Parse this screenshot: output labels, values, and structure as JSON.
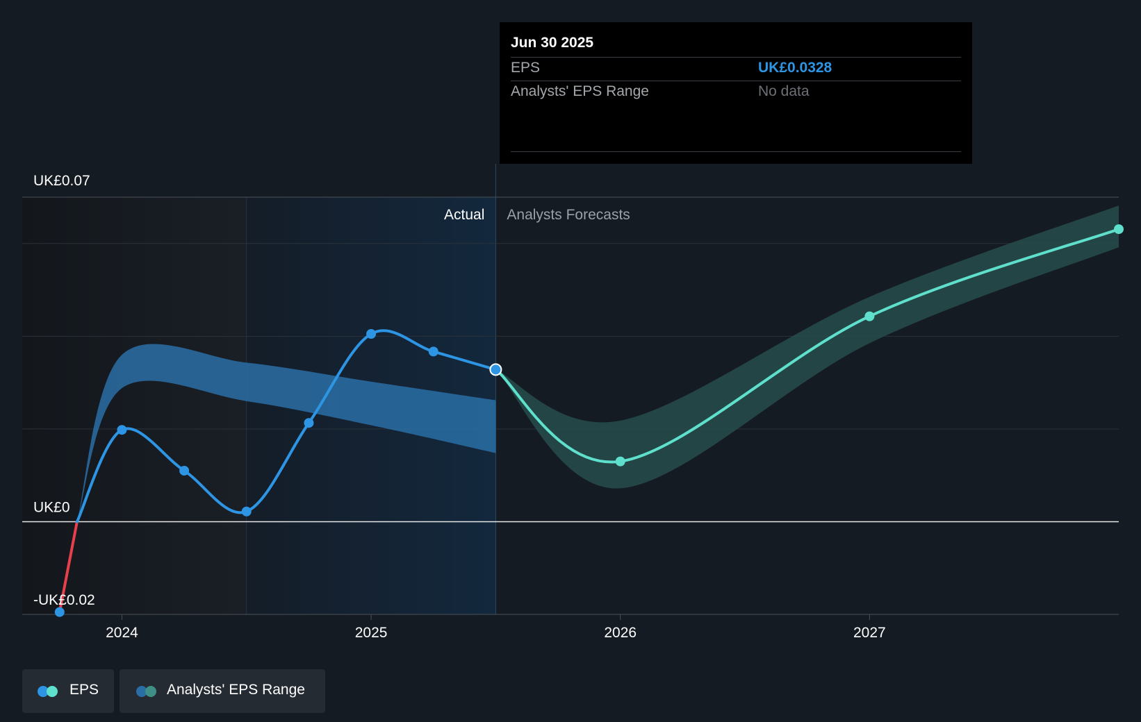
{
  "chart_data": {
    "type": "line",
    "y_axis": {
      "ticks": [
        {
          "value": 0.07,
          "label": "UK£0.07"
        },
        {
          "value": 0,
          "label": "UK£0"
        },
        {
          "value": -0.02,
          "label": "-UK£0.02"
        }
      ],
      "ylim": [
        -0.02,
        0.07
      ],
      "gridlines": [
        0.06,
        0.04,
        0.02
      ]
    },
    "x_axis": {
      "ticks": [
        "2024",
        "2025",
        "2026",
        "2027"
      ],
      "xlim": [
        2023.6,
        2028.0
      ]
    },
    "sections": {
      "actual_label": "Actual",
      "forecast_label": "Analysts Forecasts",
      "divider_x": 2025.5
    },
    "series": [
      {
        "name": "EPS",
        "color": "#2d95e3",
        "negative_color": "#e5404b",
        "points": [
          {
            "x": 2023.75,
            "y": -0.0195
          },
          {
            "x": 2024.0,
            "y": 0.0198
          },
          {
            "x": 2024.25,
            "y": 0.011
          },
          {
            "x": 2024.5,
            "y": 0.0022
          },
          {
            "x": 2024.75,
            "y": 0.0213
          },
          {
            "x": 2025.0,
            "y": 0.0405
          },
          {
            "x": 2025.25,
            "y": 0.0367
          },
          {
            "x": 2025.5,
            "y": 0.0328
          }
        ]
      },
      {
        "name": "EPS forecast",
        "color": "#5ee0cc",
        "points": [
          {
            "x": 2025.5,
            "y": 0.0328
          },
          {
            "x": 2026.0,
            "y": 0.013
          },
          {
            "x": 2027.0,
            "y": 0.0443
          },
          {
            "x": 2028.0,
            "y": 0.0631
          }
        ]
      }
    ],
    "historic_range": {
      "color": "#2a6ea6",
      "upper": [
        {
          "x": 2023.82,
          "y": 0.0
        },
        {
          "x": 2024.0,
          "y": 0.036
        },
        {
          "x": 2024.5,
          "y": 0.0343
        },
        {
          "x": 2025.0,
          "y": 0.0302
        },
        {
          "x": 2025.5,
          "y": 0.0262
        }
      ],
      "lower": [
        {
          "x": 2023.82,
          "y": 0.0
        },
        {
          "x": 2024.0,
          "y": 0.0288
        },
        {
          "x": 2024.5,
          "y": 0.026
        },
        {
          "x": 2025.0,
          "y": 0.0208
        },
        {
          "x": 2025.5,
          "y": 0.0148
        }
      ]
    },
    "forecast_range": {
      "color": "#264a49",
      "upper": [
        {
          "x": 2025.5,
          "y": 0.0328
        },
        {
          "x": 2026.0,
          "y": 0.0218
        },
        {
          "x": 2027.0,
          "y": 0.0485
        },
        {
          "x": 2028.0,
          "y": 0.0682
        }
      ],
      "lower": [
        {
          "x": 2025.5,
          "y": 0.0328
        },
        {
          "x": 2026.0,
          "y": 0.0072
        },
        {
          "x": 2027.0,
          "y": 0.0385
        },
        {
          "x": 2028.0,
          "y": 0.0592
        }
      ]
    }
  },
  "tooltip": {
    "date": "Jun 30 2025",
    "eps_label": "EPS",
    "eps_value": "UK£0.0328",
    "range_label": "Analysts' EPS Range",
    "range_value": "No data"
  },
  "legend": {
    "eps_label": "EPS",
    "range_label": "Analysts' EPS Range",
    "eps_colors": [
      "#2d95e3",
      "#5ee0cc"
    ],
    "range_colors": [
      "#2a6ea6",
      "#3f8f86"
    ]
  }
}
